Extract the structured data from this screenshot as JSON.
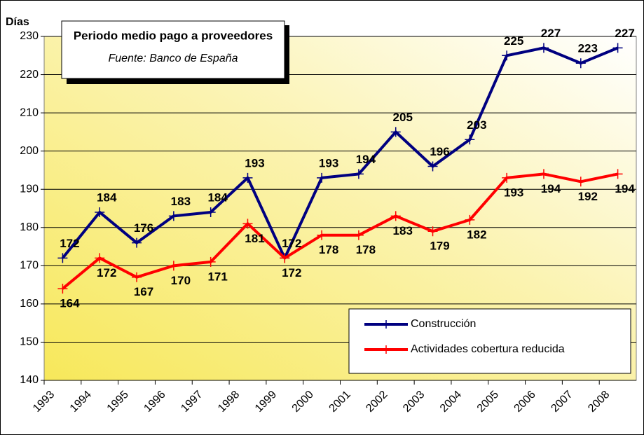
{
  "chart_data": {
    "type": "line",
    "title": "Periodo medio pago a proveedores",
    "subtitle": "Fuente: Banco de España",
    "y_label": "Días",
    "categories": [
      "1993",
      "1994",
      "1995",
      "1996",
      "1997",
      "1998",
      "1999",
      "2000",
      "2001",
      "2002",
      "2003",
      "2004",
      "2005",
      "2006",
      "2007",
      "2008"
    ],
    "series": [
      {
        "name": "Construcción",
        "color": "#000080",
        "values": [
          172,
          184,
          176,
          183,
          184,
          193,
          172,
          193,
          194,
          205,
          196,
          203,
          225,
          227,
          223,
          227
        ]
      },
      {
        "name": "Actividades cobertura reducida",
        "color": "#ff0000",
        "values": [
          164,
          172,
          167,
          170,
          171,
          181,
          172,
          178,
          178,
          183,
          179,
          182,
          193,
          194,
          192,
          194
        ]
      }
    ],
    "ylim": [
      140,
      230
    ],
    "yticks": [
      140,
      150,
      160,
      170,
      180,
      190,
      200,
      210,
      220,
      230
    ],
    "grid": true,
    "legend": "lower right"
  }
}
